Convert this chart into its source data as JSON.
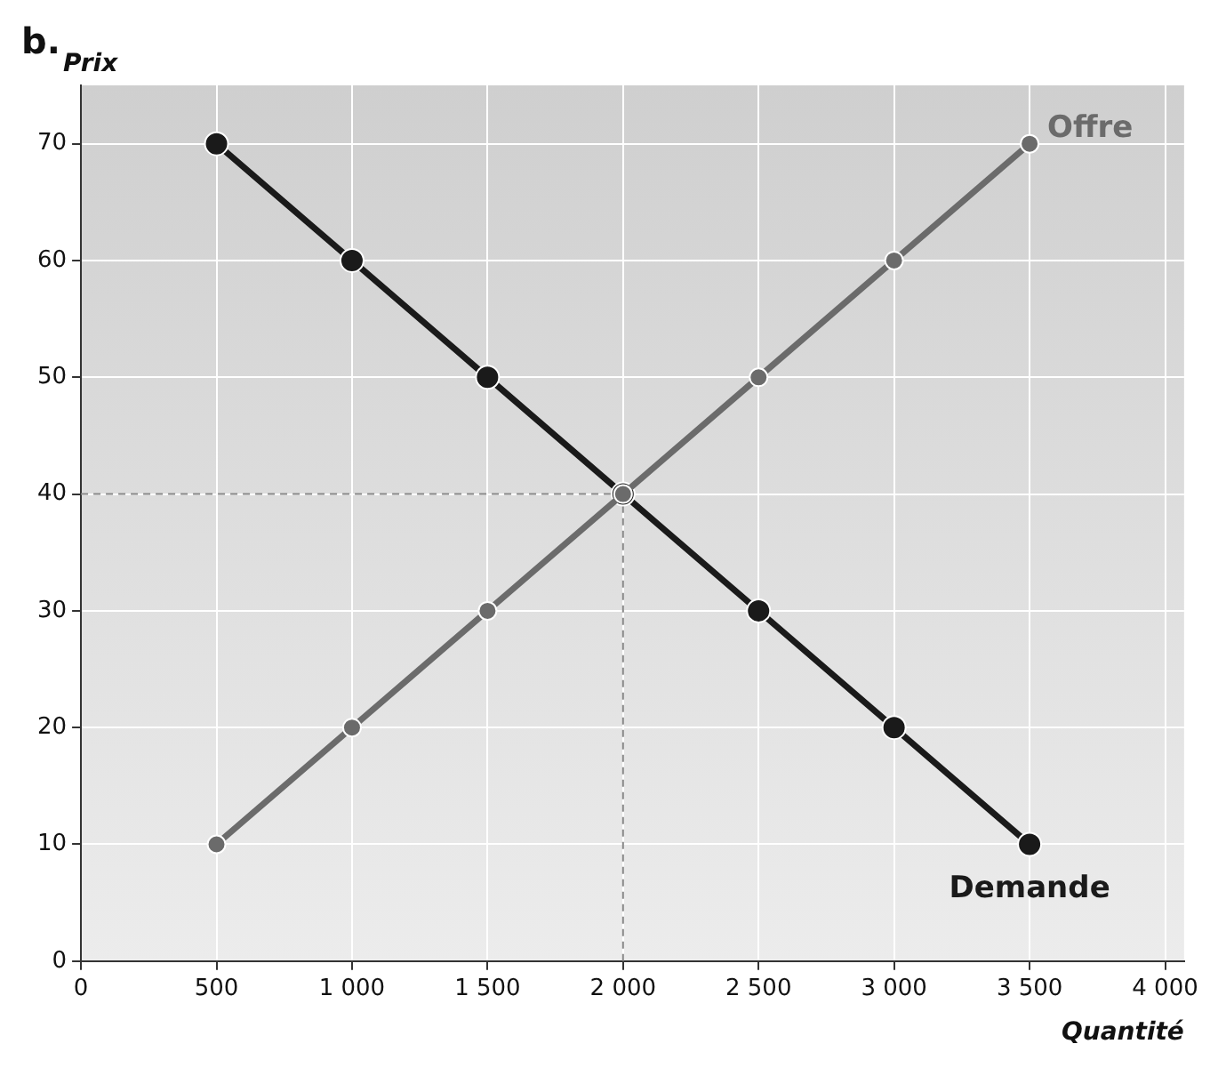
{
  "chart_data": {
    "type": "line",
    "title": "b.",
    "xlabel": "Quantité",
    "ylabel": "Prix",
    "series": [
      {
        "name": "Offre",
        "color": "#6b6b6b",
        "x": [
          500,
          1000,
          1500,
          2000,
          2500,
          3000,
          3500
        ],
        "values": [
          10,
          20,
          30,
          40,
          50,
          60,
          70
        ]
      },
      {
        "name": "Demande",
        "color": "#1a1a1a",
        "x": [
          500,
          1000,
          1500,
          2000,
          2500,
          3000,
          3500
        ],
        "values": [
          70,
          60,
          50,
          40,
          30,
          20,
          10
        ]
      }
    ],
    "xlim": [
      0,
      4070
    ],
    "xticks": [
      {
        "value": 0,
        "label": "0"
      },
      {
        "value": 500,
        "label": "500"
      },
      {
        "value": 1000,
        "label": "1 000"
      },
      {
        "value": 1500,
        "label": "1 500"
      },
      {
        "value": 2000,
        "label": "2 000"
      },
      {
        "value": 2500,
        "label": "2 500"
      },
      {
        "value": 3000,
        "label": "3 000"
      },
      {
        "value": 3500,
        "label": "3 500"
      },
      {
        "value": 4000,
        "label": "4 000"
      }
    ],
    "ylim": [
      0,
      75
    ],
    "yticks": [
      0,
      10,
      20,
      30,
      40,
      50,
      60,
      70
    ],
    "ref_lines": [
      {
        "axis": "y",
        "value": 40,
        "color": "#888888",
        "line_style": "dashed"
      },
      {
        "axis": "x",
        "value": 2000,
        "color": "#888888",
        "line_style": "dashed"
      }
    ],
    "grid": true,
    "legend": false,
    "marker": "circle",
    "line_style": "solid"
  }
}
